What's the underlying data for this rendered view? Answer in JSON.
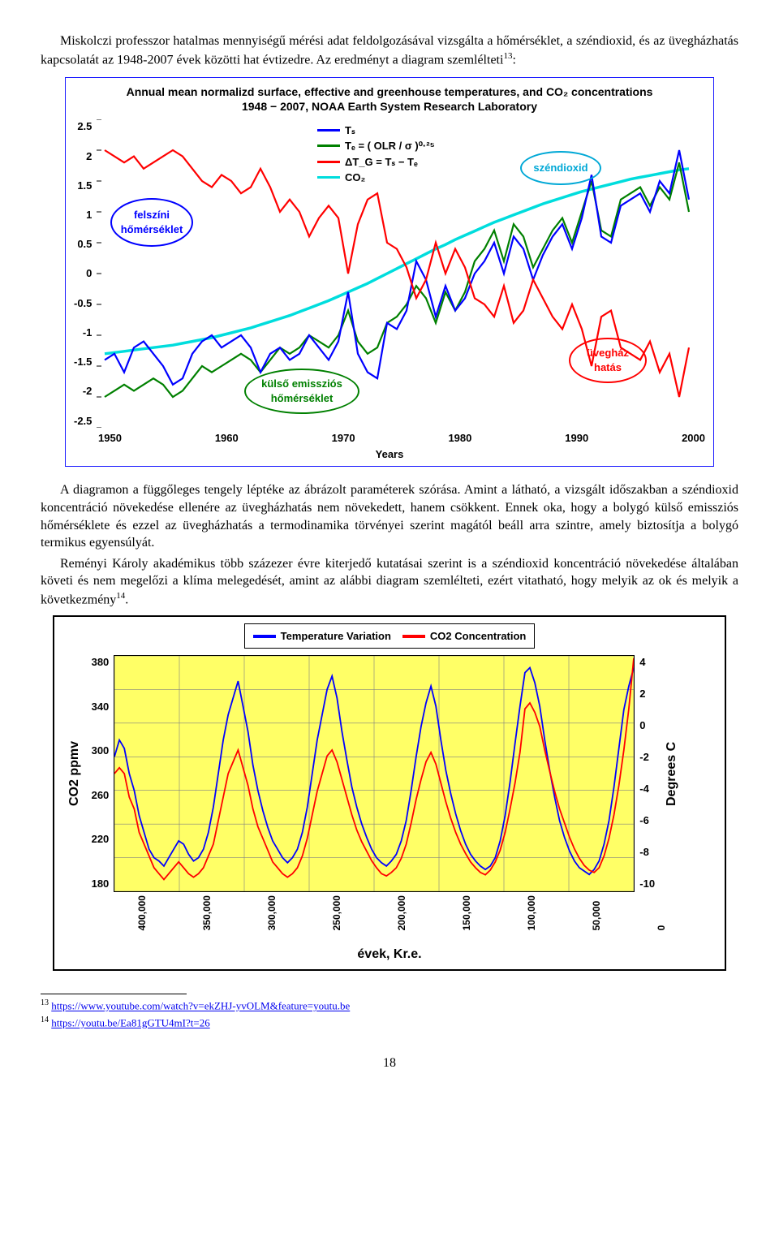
{
  "text": {
    "p1": "Miskolczi professzor hatalmas mennyiségű mérési adat feldolgozásával vizsgálta a hőmérséklet, a széndioxid, és az üvegházhatás kapcsolatát az 1948-2007 évek közötti hat évtizedre. Az eredményt a diagram szemlélteti",
    "p1_sup": "13",
    "p1_after": ":",
    "p2": "A diagramon a függőleges tengely léptéke az ábrázolt paraméterek szórása. Amint a látható, a vizsgált időszakban a széndioxid koncentráció növekedése ellenére az üvegházhatás nem növekedett, hanem csökkent. Ennek oka, hogy a bolygó külső emissziós hőmérséklete és ezzel az üvegházhatás a termodinamika törvényei szerint magától beáll arra szintre, amely biztosítja a bolygó termikus egyensúlyát.",
    "p3a": "Reményi Károly akadémikus több százezer évre kiterjedő kutatásai szerint is a széndioxid koncentráció növekedése általában követi és nem megelőzi a klíma melegedését, amint az alábbi diagram szemlélteti, ezért vitatható, hogy melyik az ok és melyik a következmény",
    "p3_sup": "14",
    "p3_after": "."
  },
  "chart1": {
    "title_l1": "Annual mean normalizd surface, effective and greenhouse temperatures, and CO₂ concentrations",
    "title_l2": "1948 − 2007, NOAA Earth System Research Laboratory",
    "yticks": [
      "2.5",
      "2",
      "1.5",
      "1",
      "0.5",
      "0",
      "-0.5",
      "-1",
      "-1.5",
      "-2",
      "-2.5"
    ],
    "xticks": [
      "1950",
      "1960",
      "1970",
      "1980",
      "1990",
      "2000"
    ],
    "xlabel": "Years",
    "legend": [
      {
        "label": "Tₛ",
        "color": "#0000ff"
      },
      {
        "label": "Tₑ = ( OLR / σ )⁰·²⁵",
        "color": "#008000"
      },
      {
        "label": "ΔT_G = Tₛ − Tₑ",
        "color": "#ff0000"
      },
      {
        "label": "CO₂",
        "color": "#00dddd"
      }
    ],
    "callouts": {
      "surface": {
        "text": "felszíni hőmérséklet",
        "color": "#0000ff"
      },
      "co2": {
        "text": "széndioxid",
        "color": "#00a8d6"
      },
      "emiss": {
        "text": "külső emissziós hőmérséklet",
        "color": "#008000"
      },
      "green": {
        "text": "üvegház hatás",
        "color": "#ff0000"
      }
    },
    "colors": {
      "ts": "#0000ff",
      "te": "#008000",
      "dtg": "#ff0000",
      "co2": "#00dddd",
      "grid": "#d0d0d0",
      "frame": "#1a1aff"
    },
    "stroke_width": 2.2,
    "series": {
      "ts": [
        -1.4,
        -1.3,
        -1.6,
        -1.2,
        -1.1,
        -1.3,
        -1.5,
        -1.8,
        -1.7,
        -1.3,
        -1.1,
        -1.0,
        -1.2,
        -1.1,
        -1.0,
        -1.2,
        -1.6,
        -1.3,
        -1.2,
        -1.4,
        -1.3,
        -1.0,
        -1.2,
        -1.4,
        -1.1,
        -0.3,
        -1.3,
        -1.6,
        -1.7,
        -0.8,
        -0.9,
        -0.6,
        0.2,
        -0.1,
        -0.7,
        -0.2,
        -0.6,
        -0.4,
        0.0,
        0.2,
        0.5,
        0.0,
        0.6,
        0.4,
        -0.1,
        0.3,
        0.6,
        0.8,
        0.4,
        0.9,
        1.6,
        0.6,
        0.5,
        1.1,
        1.2,
        1.3,
        1.0,
        1.5,
        1.3,
        2.0,
        1.2
      ],
      "te": [
        -2.0,
        -1.9,
        -1.8,
        -1.9,
        -1.8,
        -1.7,
        -1.8,
        -2.0,
        -1.9,
        -1.7,
        -1.5,
        -1.6,
        -1.5,
        -1.4,
        -1.3,
        -1.4,
        -1.6,
        -1.4,
        -1.2,
        -1.3,
        -1.2,
        -1.0,
        -1.1,
        -1.2,
        -1.0,
        -0.6,
        -1.1,
        -1.3,
        -1.2,
        -0.8,
        -0.7,
        -0.5,
        -0.2,
        -0.4,
        -0.8,
        -0.3,
        -0.6,
        -0.3,
        0.2,
        0.4,
        0.7,
        0.2,
        0.8,
        0.6,
        0.1,
        0.4,
        0.7,
        0.9,
        0.5,
        1.0,
        1.5,
        0.7,
        0.6,
        1.2,
        1.3,
        1.4,
        1.1,
        1.4,
        1.2,
        1.8,
        1.0
      ],
      "dtg": [
        2.0,
        1.9,
        1.8,
        1.9,
        1.7,
        1.8,
        1.9,
        2.0,
        1.9,
        1.7,
        1.5,
        1.4,
        1.6,
        1.5,
        1.3,
        1.4,
        1.7,
        1.4,
        1.0,
        1.2,
        1.0,
        0.6,
        0.9,
        1.1,
        0.9,
        0.0,
        0.8,
        1.2,
        1.3,
        0.5,
        0.4,
        0.1,
        -0.4,
        -0.1,
        0.5,
        0.0,
        0.4,
        0.1,
        -0.4,
        -0.5,
        -0.7,
        -0.2,
        -0.8,
        -0.6,
        -0.1,
        -0.4,
        -0.7,
        -0.9,
        -0.5,
        -0.9,
        -1.5,
        -0.7,
        -0.6,
        -1.2,
        -1.3,
        -1.4,
        -1.1,
        -1.6,
        -1.3,
        -2.0,
        -1.2
      ],
      "co2": [
        -1.3,
        -1.28,
        -1.26,
        -1.24,
        -1.22,
        -1.2,
        -1.18,
        -1.16,
        -1.13,
        -1.1,
        -1.07,
        -1.04,
        -1.0,
        -0.96,
        -0.92,
        -0.88,
        -0.83,
        -0.78,
        -0.73,
        -0.68,
        -0.62,
        -0.56,
        -0.5,
        -0.44,
        -0.37,
        -0.3,
        -0.23,
        -0.16,
        -0.08,
        0.0,
        0.08,
        0.16,
        0.24,
        0.32,
        0.4,
        0.47,
        0.55,
        0.62,
        0.69,
        0.76,
        0.83,
        0.89,
        0.95,
        1.01,
        1.07,
        1.13,
        1.18,
        1.23,
        1.28,
        1.33,
        1.37,
        1.41,
        1.45,
        1.49,
        1.53,
        1.56,
        1.59,
        1.62,
        1.65,
        1.68,
        1.7
      ]
    }
  },
  "chart2": {
    "legend": [
      {
        "label": "Temperature Variation",
        "color": "#0000ff"
      },
      {
        "label": "CO2 Concentration",
        "color": "#ff0000"
      }
    ],
    "yleft_label": "CO2 ppmv",
    "yright_label": "Degrees C",
    "yleft_ticks": [
      "380",
      "340",
      "300",
      "260",
      "220",
      "180"
    ],
    "yright_ticks": [
      "4",
      "2",
      "0",
      "-2",
      "-4",
      "-6",
      "-8",
      "-10"
    ],
    "xticks": [
      "400,000",
      "350,000",
      "300,000",
      "250,000",
      "200,000",
      "150,000",
      "100,000",
      "50,000",
      "0"
    ],
    "xlabel": "évek, Kr.e.",
    "colors": {
      "temp": "#0000ff",
      "co2": "#ff0000",
      "bg": "#ffff66",
      "grid": "#808080"
    },
    "stroke_width": 1.8,
    "yleft_range": [
      180,
      380
    ],
    "yright_range": [
      -10,
      4
    ],
    "series_co2": [
      280,
      285,
      280,
      260,
      250,
      230,
      220,
      210,
      200,
      195,
      190,
      195,
      200,
      205,
      200,
      195,
      192,
      195,
      200,
      210,
      220,
      240,
      260,
      280,
      290,
      300,
      285,
      270,
      250,
      235,
      225,
      215,
      205,
      200,
      195,
      192,
      195,
      200,
      210,
      225,
      245,
      265,
      280,
      295,
      300,
      290,
      275,
      260,
      245,
      232,
      222,
      214,
      206,
      200,
      195,
      193,
      196,
      200,
      208,
      220,
      238,
      258,
      275,
      290,
      298,
      288,
      272,
      256,
      242,
      230,
      220,
      212,
      205,
      200,
      196,
      194,
      198,
      205,
      215,
      230,
      250,
      272,
      298,
      335,
      340,
      332,
      320,
      300,
      282,
      265,
      250,
      238,
      226,
      216,
      208,
      202,
      198,
      196,
      200,
      210,
      225,
      245,
      270,
      300,
      335,
      378
    ],
    "series_temp": [
      -2,
      -1,
      -1.5,
      -3,
      -4,
      -5.5,
      -6.5,
      -7.5,
      -8,
      -8.2,
      -8.5,
      -8,
      -7.5,
      -7,
      -7.2,
      -7.8,
      -8.2,
      -8,
      -7.5,
      -6.5,
      -5,
      -3,
      -1,
      0.5,
      1.5,
      2.5,
      1,
      -0.5,
      -2.5,
      -4,
      -5.2,
      -6.2,
      -7,
      -7.5,
      -8,
      -8.3,
      -8,
      -7.5,
      -6.5,
      -5,
      -3,
      -1,
      0.5,
      2,
      2.8,
      1.5,
      -0.5,
      -2.2,
      -3.8,
      -5,
      -6,
      -6.8,
      -7.5,
      -8,
      -8.3,
      -8.5,
      -8.2,
      -7.8,
      -7,
      -5.8,
      -4,
      -2,
      -0.2,
      1.2,
      2.2,
      1,
      -1,
      -2.8,
      -4.2,
      -5.4,
      -6.4,
      -7.2,
      -7.8,
      -8.2,
      -8.5,
      -8.7,
      -8.5,
      -8,
      -7,
      -5.5,
      -3.5,
      -1.2,
      1,
      3,
      3.3,
      2.4,
      1,
      -1,
      -2.8,
      -4.4,
      -5.8,
      -6.8,
      -7.6,
      -8.2,
      -8.6,
      -8.8,
      -9,
      -8.7,
      -8.2,
      -7.2,
      -5.8,
      -3.8,
      -1.5,
      0.8,
      2.2,
      3.3
    ]
  },
  "footnotes": {
    "fn13_num": "13",
    "fn13_url": "https://www.youtube.com/watch?v=ekZHJ-yvOLM&feature=youtu.be",
    "fn14_num": "14",
    "fn14_url": "https://youtu.be/Ea81gGTU4mI?t=26"
  },
  "page_number": "18"
}
